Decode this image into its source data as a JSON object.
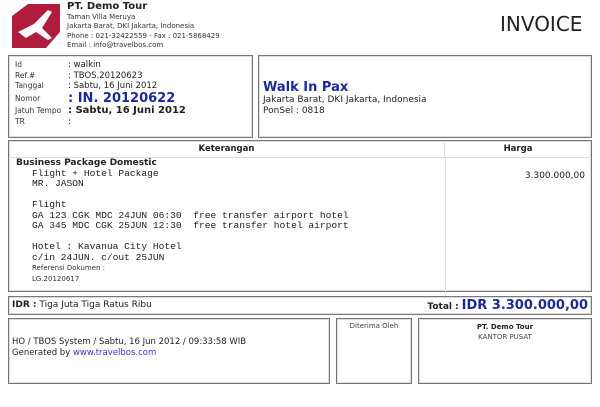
{
  "company": {
    "name": "PT. Demo Tour",
    "address1": "Taman Villa Meruya",
    "address2": "Jakarta Barat, DKI Jakarta, Indonesia",
    "phone": "Phone : 021-32422559 - Fax : 021-5868429",
    "email": "Email : info@travelbos.com",
    "logo_color": "#b01c3c"
  },
  "doc_title": "INVOICE",
  "info": [
    {
      "label": "Id",
      "value": ": walkin"
    },
    {
      "label": "Ref.#",
      "value": ": TBOS.20120623"
    },
    {
      "label": "Tanggal",
      "value": ": Sabtu, 16 Juni 2012"
    },
    {
      "label": "Nomor",
      "value": ": IN. 20120622"
    },
    {
      "label": "Jatuh Tempo",
      "value": ": Sabtu, 16 Juni 2012"
    },
    {
      "label": "TR",
      "value": ":"
    }
  ],
  "customer": {
    "name": "Walk In Pax",
    "address": "Jakarta Barat, DKI Jakarta, Indonesia",
    "phone": "PonSel : 0818"
  },
  "table": {
    "headers": [
      "Keterangan",
      "Harga"
    ],
    "item": {
      "title": "Business Package Domestic",
      "lines": "Flight + Hotel Package\nMR. JASON\n\nFlight\nGA 123 CGK MDC 24JUN 06:30  free transfer airport hotel\nGA 345 MDC CGK 25JUN 12:30  free transfer hotel airport\n\nHotel : Kavanua City Hotel\nc/in 24JUN. c/out 25JUN",
      "ref_label": "Referensi Dokumen :",
      "ref_value": "LG.20120617",
      "price": "3.300.000,00"
    }
  },
  "total": {
    "words_label": "IDR :",
    "words": "Tiga Juta Tiga Ratus Ribu",
    "label": "Total :",
    "amount": "IDR  3.300.000,00"
  },
  "footer": {
    "system": "HO / TBOS System / Sabtu, 16 Jun 2012 / 09:33:58 WIB",
    "generated": "Generated by",
    "link": "www.travelbos.com",
    "received": "Diterima Oleh",
    "company": "PT. Demo Tour",
    "office": "KANTOR PUSAT"
  }
}
